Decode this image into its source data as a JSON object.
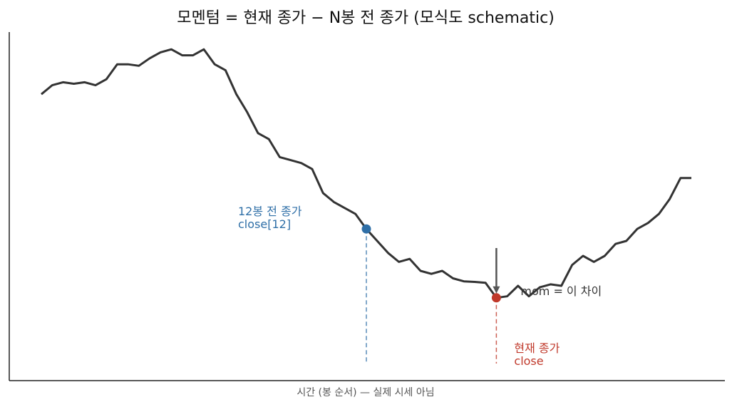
{
  "chart_data": {
    "type": "line",
    "title": "모멘텀 = 현재 종가 − N봉 전 종가  (모식도 schematic)",
    "xlabel": "시간 (봉 순서) — 실제 시세 아님",
    "ylabel": "",
    "xlim": [
      0,
      60
    ],
    "ylim": [
      0,
      100
    ],
    "grid": false,
    "series": [
      {
        "color": "#333333",
        "x": [
          0,
          1,
          2,
          3,
          4,
          5,
          6,
          7,
          8,
          9,
          10,
          11,
          12,
          13,
          14,
          15,
          16,
          17,
          18,
          19,
          20,
          21,
          22,
          23,
          24,
          25,
          26,
          27,
          28,
          29,
          30,
          31,
          32,
          33,
          34,
          35,
          36,
          37,
          38,
          39,
          40,
          41,
          42,
          43,
          44,
          45,
          46,
          47,
          48,
          49,
          50,
          51,
          52,
          53,
          54,
          55,
          56,
          57,
          58,
          59,
          60
        ],
        "y": [
          84,
          87,
          88,
          87.5,
          88,
          87,
          89,
          94,
          94,
          93.5,
          96,
          98,
          99,
          97,
          97,
          99,
          94,
          92,
          84,
          78,
          71,
          69,
          63,
          62,
          61,
          59,
          51,
          48,
          46,
          44,
          39,
          35,
          31,
          28,
          29,
          25,
          24,
          25,
          22.5,
          21.5,
          21.3,
          21,
          16,
          16.5,
          20,
          16.5,
          19.5,
          20.5,
          20,
          27,
          30,
          28,
          30,
          34,
          35,
          39,
          41,
          44,
          49,
          56,
          56
        ]
      }
    ],
    "markers": [
      {
        "name": "n_bars_ago",
        "x": 30,
        "y": 39,
        "color": "#2f6fa7",
        "label_lines": [
          "12봉 전 종가",
          "close[12]"
        ]
      },
      {
        "name": "current",
        "x": 42,
        "y": 16,
        "color": "#c0392b",
        "label_lines": [
          "현재 종가",
          "close"
        ]
      }
    ],
    "annotation": {
      "text": "mom = 이 차이",
      "color": "#333333"
    }
  }
}
